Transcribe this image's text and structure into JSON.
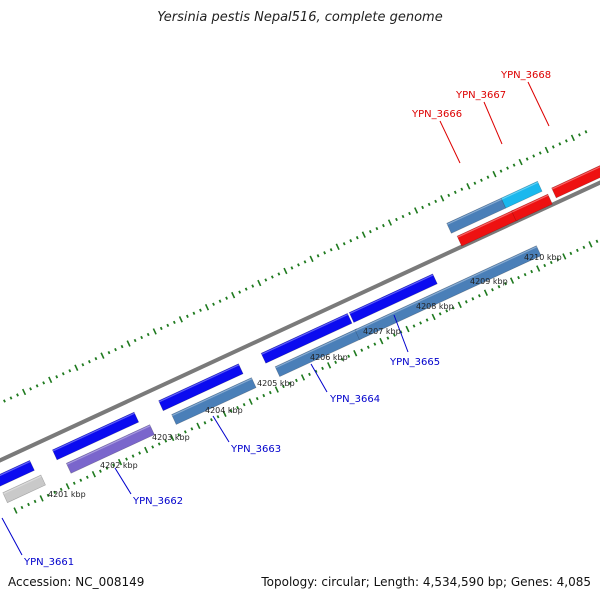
{
  "title": "Yersinia pestis Nepal516, complete genome",
  "accession": "Accession: NC_008149",
  "summary": "Topology: circular; Length: 4,534,590 bp; Genes: 4,085",
  "colors": {
    "backbone": "#7a7a7a",
    "tick": "#1f7a1f",
    "plus_strand": "#0b0bf0",
    "minus_strand": "#4a7fb8",
    "lavender": "#7a66cc",
    "red": "#ee1111",
    "cyan": "#1ab8ee",
    "gray": "#c9c9c9",
    "label_blue": "#0000cc",
    "label_red": "#dd0000"
  },
  "scale_labels": [
    "4201 kbp",
    "4202 kbp",
    "4203 kbp",
    "4204 kbp",
    "4205 kbp",
    "4206 kbp",
    "4207 kbp",
    "4208 kbp",
    "4209 kbp",
    "4210 kbp"
  ],
  "gene_labels": [
    {
      "text": "YPN_3661",
      "color": "blue"
    },
    {
      "text": "YPN_3662",
      "color": "blue"
    },
    {
      "text": "YPN_3663",
      "color": "blue"
    },
    {
      "text": "YPN_3664",
      "color": "blue"
    },
    {
      "text": "YPN_3665",
      "color": "blue"
    },
    {
      "text": "YPN_3666",
      "color": "red"
    },
    {
      "text": "YPN_3667",
      "color": "red"
    },
    {
      "text": "YPN_3668",
      "color": "red"
    }
  ]
}
